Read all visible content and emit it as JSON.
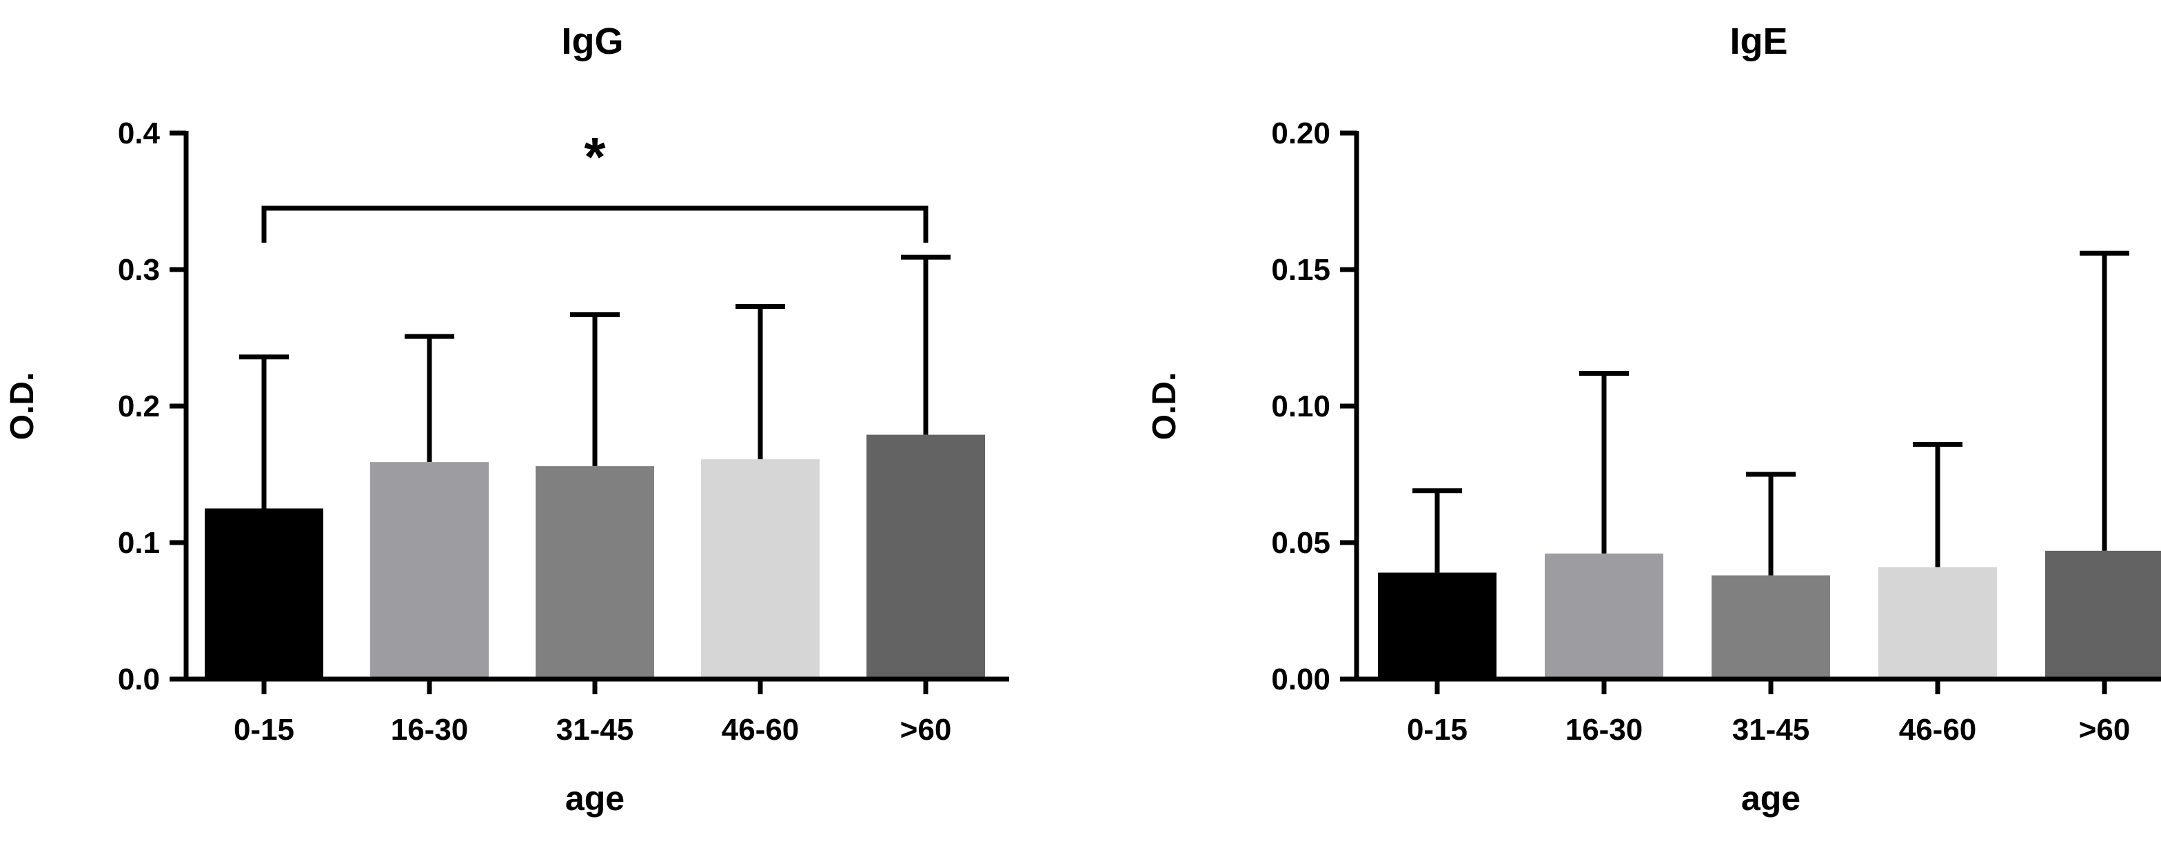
{
  "chart_data": [
    {
      "type": "bar",
      "title": "IgG",
      "xlabel": "age",
      "ylabel": "O.D.",
      "ylim": [
        0,
        0.4
      ],
      "yticks": [
        "0.0",
        "0.1",
        "0.2",
        "0.3",
        "0.4"
      ],
      "categories": [
        "0-15",
        "16-30",
        "31-45",
        "46-60",
        ">60"
      ],
      "values": [
        0.125,
        0.159,
        0.156,
        0.161,
        0.179
      ],
      "error_upper": [
        0.236,
        0.251,
        0.267,
        0.273,
        0.309
      ],
      "bar_colors": [
        "#000000",
        "#9d9ca1",
        "#808080",
        "#d6d6d6",
        "#636363"
      ],
      "annotation": {
        "text": "*",
        "from": "0-15",
        "to": ">60"
      },
      "grid": false
    },
    {
      "type": "bar",
      "title": "IgE",
      "xlabel": "age",
      "ylabel": "O.D.",
      "ylim": [
        0,
        0.2
      ],
      "yticks": [
        "0.00",
        "0.05",
        "0.10",
        "0.15",
        "0.20"
      ],
      "categories": [
        "0-15",
        "16-30",
        "31-45",
        "46-60",
        ">60"
      ],
      "values": [
        0.039,
        0.046,
        0.038,
        0.041,
        0.047
      ],
      "error_upper": [
        0.069,
        0.112,
        0.075,
        0.086,
        0.156
      ],
      "bar_colors": [
        "#000000",
        "#9d9ca1",
        "#808080",
        "#d6d6d6",
        "#636363"
      ],
      "grid": false
    }
  ]
}
